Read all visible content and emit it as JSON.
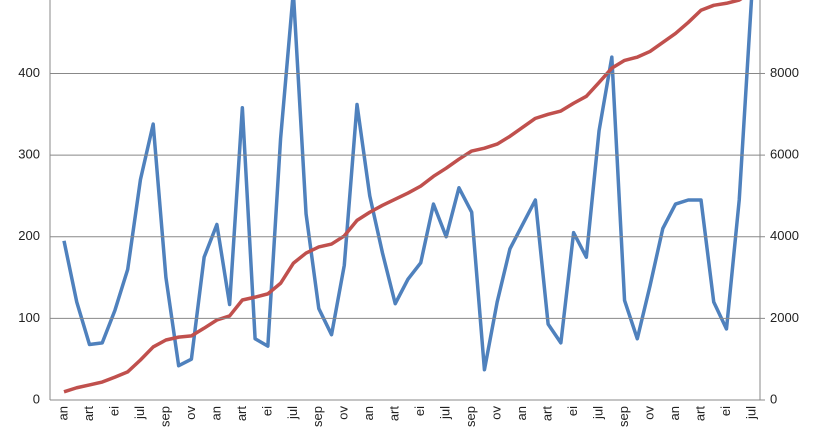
{
  "chart_data": {
    "type": "line",
    "categories": [
      "an",
      null,
      "art",
      null,
      "ei",
      null,
      "jul",
      null,
      "sep",
      null,
      "ov",
      null,
      "an",
      null,
      "art",
      null,
      "ei",
      null,
      "jul",
      null,
      "sep",
      null,
      "ov",
      null,
      "an",
      null,
      "art",
      null,
      "ei",
      null,
      "jul",
      null,
      "sep",
      null,
      "ov",
      null,
      "an",
      null,
      "art",
      null,
      "ei",
      null,
      "jul",
      null,
      "sep",
      null,
      "ov",
      null,
      "an",
      null,
      "art",
      null,
      "ei",
      null,
      "jul"
    ],
    "series": [
      {
        "color": "#4f81bd",
        "axis": "y",
        "values": [
          195,
          120,
          68,
          70,
          110,
          160,
          270,
          338,
          150,
          42,
          50,
          175,
          215,
          117,
          358,
          75,
          66,
          320,
          500,
          228,
          112,
          80,
          165,
          362,
          250,
          180,
          118,
          148,
          168,
          240,
          200,
          260,
          230,
          37,
          120,
          185,
          215,
          245,
          93,
          70,
          205,
          175,
          330,
          420,
          122,
          75,
          140,
          210,
          240,
          245,
          245,
          120,
          87,
          245,
          500
        ]
      },
      {
        "color": "#c0504d",
        "axis": "y2",
        "values": [
          200,
          300,
          370,
          440,
          560,
          690,
          980,
          1300,
          1470,
          1540,
          1570,
          1760,
          1960,
          2060,
          2450,
          2520,
          2600,
          2860,
          3350,
          3600,
          3750,
          3820,
          4020,
          4400,
          4600,
          4770,
          4920,
          5070,
          5240,
          5480,
          5680,
          5900,
          6100,
          6170,
          6270,
          6460,
          6680,
          6900,
          7000,
          7080,
          7270,
          7440,
          7780,
          8130,
          8320,
          8400,
          8540,
          8760,
          8980,
          9250,
          9550,
          9670,
          9720,
          9800,
          10000
        ]
      }
    ],
    "ylim": [
      0,
      490
    ],
    "yticks": [
      0,
      100,
      200,
      300,
      400
    ],
    "y2lim": [
      0,
      9800
    ],
    "y2ticks": [
      0,
      2000,
      4000,
      6000,
      8000
    ],
    "grid": true
  }
}
